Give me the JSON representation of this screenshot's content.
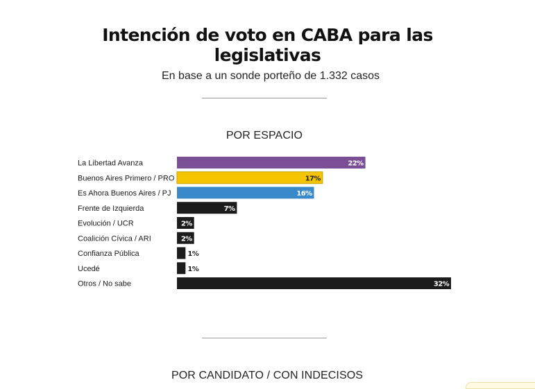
{
  "header": {
    "title_line1": "Intención de voto en CABA para las",
    "title_line2": "legislativas",
    "subtitle": "En base a un sonde porteño de 1.332 casos"
  },
  "sections": {
    "by_party": "POR ESPACIO",
    "by_candidate": "POR CANDIDATO / CON INDECISOS"
  },
  "chart_data": {
    "type": "bar",
    "orientation": "horizontal",
    "categories": [
      "La Libertad Avanza",
      "Buenos Aires Primero / PRO",
      "Es Ahora Buenos Aires / PJ",
      "Frente de Izquierda",
      "Evolución / UCR",
      "Coalición Cívica / ARI",
      "Confianza Pública",
      "Ucedé",
      "Otros / No sabe"
    ],
    "values": [
      22,
      17,
      16,
      7,
      2,
      2,
      1,
      1,
      32
    ],
    "value_labels": [
      "22%",
      "17%",
      "16%",
      "7%",
      "2%",
      "2%",
      "1%",
      "1%",
      "32%"
    ],
    "colors": [
      "#7b4f96",
      "#f5c400",
      "#3a8acb",
      "#1c1c1c",
      "#1c1c1c",
      "#1c1c1c",
      "#1c1c1c",
      "#1c1c1c",
      "#1c1c1c"
    ],
    "label_colors": [
      "#ffffff",
      "#222222",
      "#ffffff",
      "#ffffff",
      "#ffffff",
      "#ffffff",
      "#222222",
      "#222222",
      "#ffffff"
    ],
    "xlim": [
      0,
      32
    ]
  }
}
